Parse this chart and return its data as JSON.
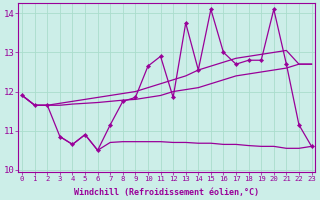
{
  "xlabel": "Windchill (Refroidissement éolien,°C)",
  "x": [
    0,
    1,
    2,
    3,
    4,
    5,
    6,
    7,
    8,
    9,
    10,
    11,
    12,
    13,
    14,
    15,
    16,
    17,
    18,
    19,
    20,
    21,
    22,
    23
  ],
  "line1": [
    11.9,
    11.65,
    11.65,
    10.85,
    10.65,
    10.9,
    10.5,
    11.15,
    11.75,
    11.85,
    12.65,
    12.9,
    11.85,
    13.75,
    12.55,
    14.1,
    13.0,
    12.7,
    12.8,
    12.8,
    14.1,
    12.7,
    11.15,
    10.6
  ],
  "line2": [
    11.9,
    11.65,
    11.65,
    11.7,
    11.75,
    11.8,
    11.85,
    11.9,
    11.95,
    12.0,
    12.1,
    12.2,
    12.3,
    12.4,
    12.55,
    12.65,
    12.75,
    12.85,
    12.9,
    12.95,
    13.0,
    13.05,
    12.7,
    12.7
  ],
  "line3": [
    11.9,
    11.65,
    11.65,
    11.65,
    11.68,
    11.7,
    11.72,
    11.75,
    11.78,
    11.8,
    11.85,
    11.9,
    12.0,
    12.05,
    12.1,
    12.2,
    12.3,
    12.4,
    12.45,
    12.5,
    12.55,
    12.6,
    12.7,
    12.7
  ],
  "line4": [
    null,
    null,
    null,
    10.85,
    10.65,
    10.9,
    10.5,
    10.7,
    10.72,
    10.72,
    10.72,
    10.72,
    10.7,
    10.7,
    10.68,
    10.68,
    10.65,
    10.65,
    10.62,
    10.6,
    10.6,
    10.55,
    10.55,
    10.6
  ],
  "color": "#990099",
  "bg_color": "#cceee8",
  "grid_color": "#aaddcc",
  "ylim": [
    9.95,
    14.25
  ],
  "yticks": [
    10,
    11,
    12,
    13,
    14
  ],
  "xlim": [
    -0.3,
    23.3
  ]
}
